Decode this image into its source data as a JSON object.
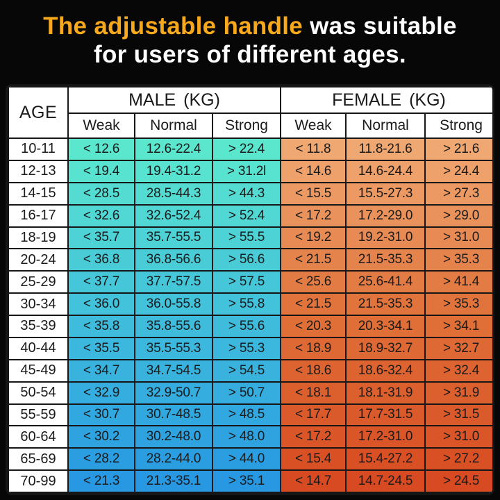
{
  "page": {
    "background": "#070707"
  },
  "title": {
    "line1_highlight": "The adjustable handle",
    "line1_rest": " was suitable",
    "line2": "for users of different ages.",
    "highlight_color": "#F7A81B",
    "text_color": "#FFFFFF"
  },
  "chart_data": {
    "type": "table",
    "title": "The adjustable handle was suitable for users of different ages.",
    "header": {
      "age": "AGE",
      "groups": [
        {
          "label": "MALE (KG)"
        },
        {
          "label": "FEMALE (KG)"
        }
      ],
      "sub_columns": [
        "Weak",
        "Normal",
        "Strong"
      ]
    },
    "colors": {
      "male_gradient": [
        "#5BE7CE",
        "#41BFDC",
        "#2898E2"
      ],
      "female_gradient": [
        "#F0A873",
        "#E07038",
        "#D84B22"
      ],
      "grid": "#161616",
      "header_bg": "#FFFFFF",
      "text": "#1B1B1B"
    },
    "rows": [
      {
        "age": "10-11",
        "male": [
          "< 12.6",
          "12.6-22.4",
          "> 22.4"
        ],
        "female": [
          "< 11.8",
          "11.8-21.6",
          "> 21.6"
        ]
      },
      {
        "age": "12-13",
        "male": [
          "< 19.4",
          "19.4-31.2",
          "> 31.2l"
        ],
        "female": [
          "< 14.6",
          "14.6-24.4",
          "> 24.4"
        ]
      },
      {
        "age": "14-15",
        "male": [
          "< 28.5",
          "28.5-44.3",
          "> 44.3"
        ],
        "female": [
          "< 15.5",
          "15.5-27.3",
          "> 27.3"
        ]
      },
      {
        "age": "16-17",
        "male": [
          "< 32.6",
          "32.6-52.4",
          "> 52.4"
        ],
        "female": [
          "< 17.2",
          "17.2-29.0",
          "> 29.0"
        ]
      },
      {
        "age": "18-19",
        "male": [
          "< 35.7",
          "35.7-55.5",
          "> 55.5"
        ],
        "female": [
          "< 19.2",
          "19.2-31.0",
          "> 31.0"
        ]
      },
      {
        "age": "20-24",
        "male": [
          "< 36.8",
          "36.8-56.6",
          "> 56.6"
        ],
        "female": [
          "< 21.5",
          "21.5-35.3",
          "> 35.3"
        ]
      },
      {
        "age": "25-29",
        "male": [
          "< 37.7",
          "37.7-57.5",
          "> 57.5"
        ],
        "female": [
          "< 25.6",
          "25.6-41.4",
          "> 41.4"
        ]
      },
      {
        "age": "30-34",
        "male": [
          "< 36.0",
          "36.0-55.8",
          "> 55.8"
        ],
        "female": [
          "< 21.5",
          "21.5-35.3",
          "> 35.3"
        ]
      },
      {
        "age": "35-39",
        "male": [
          "< 35.8",
          "35.8-55.6",
          "> 55.6"
        ],
        "female": [
          "< 20.3",
          "20.3-34.1",
          "> 34.1"
        ]
      },
      {
        "age": "40-44",
        "male": [
          "< 35.5",
          "35.5-55.3",
          "> 55.3"
        ],
        "female": [
          "< 18.9",
          "18.9-32.7",
          "> 32.7"
        ]
      },
      {
        "age": "45-49",
        "male": [
          "< 34.7",
          "34.7-54.5",
          "> 54.5"
        ],
        "female": [
          "< 18.6",
          "18.6-32.4",
          "> 32.4"
        ]
      },
      {
        "age": "50-54",
        "male": [
          "< 32.9",
          "32.9-50.7",
          "> 50.7"
        ],
        "female": [
          "< 18.1",
          "18.1-31.9",
          "> 31.9"
        ]
      },
      {
        "age": "55-59",
        "male": [
          "< 30.7",
          "30.7-48.5",
          "> 48.5"
        ],
        "female": [
          "< 17.7",
          "17.7-31.5",
          "> 31.5"
        ]
      },
      {
        "age": "60-64",
        "male": [
          "< 30.2",
          "30.2-48.0",
          "> 48.0"
        ],
        "female": [
          "< 17.2",
          "17.2-31.0",
          "> 31.0"
        ]
      },
      {
        "age": "65-69",
        "male": [
          "< 28.2",
          "28.2-44.0",
          "> 44.0"
        ],
        "female": [
          "< 15.4",
          "15.4-27.2",
          "> 27.2"
        ]
      },
      {
        "age": "70-99",
        "male": [
          "< 21.3",
          "21.3-35.1",
          "> 35.1"
        ],
        "female": [
          "< 14.7",
          "14.7-24.5",
          "> 24.5"
        ]
      }
    ]
  }
}
